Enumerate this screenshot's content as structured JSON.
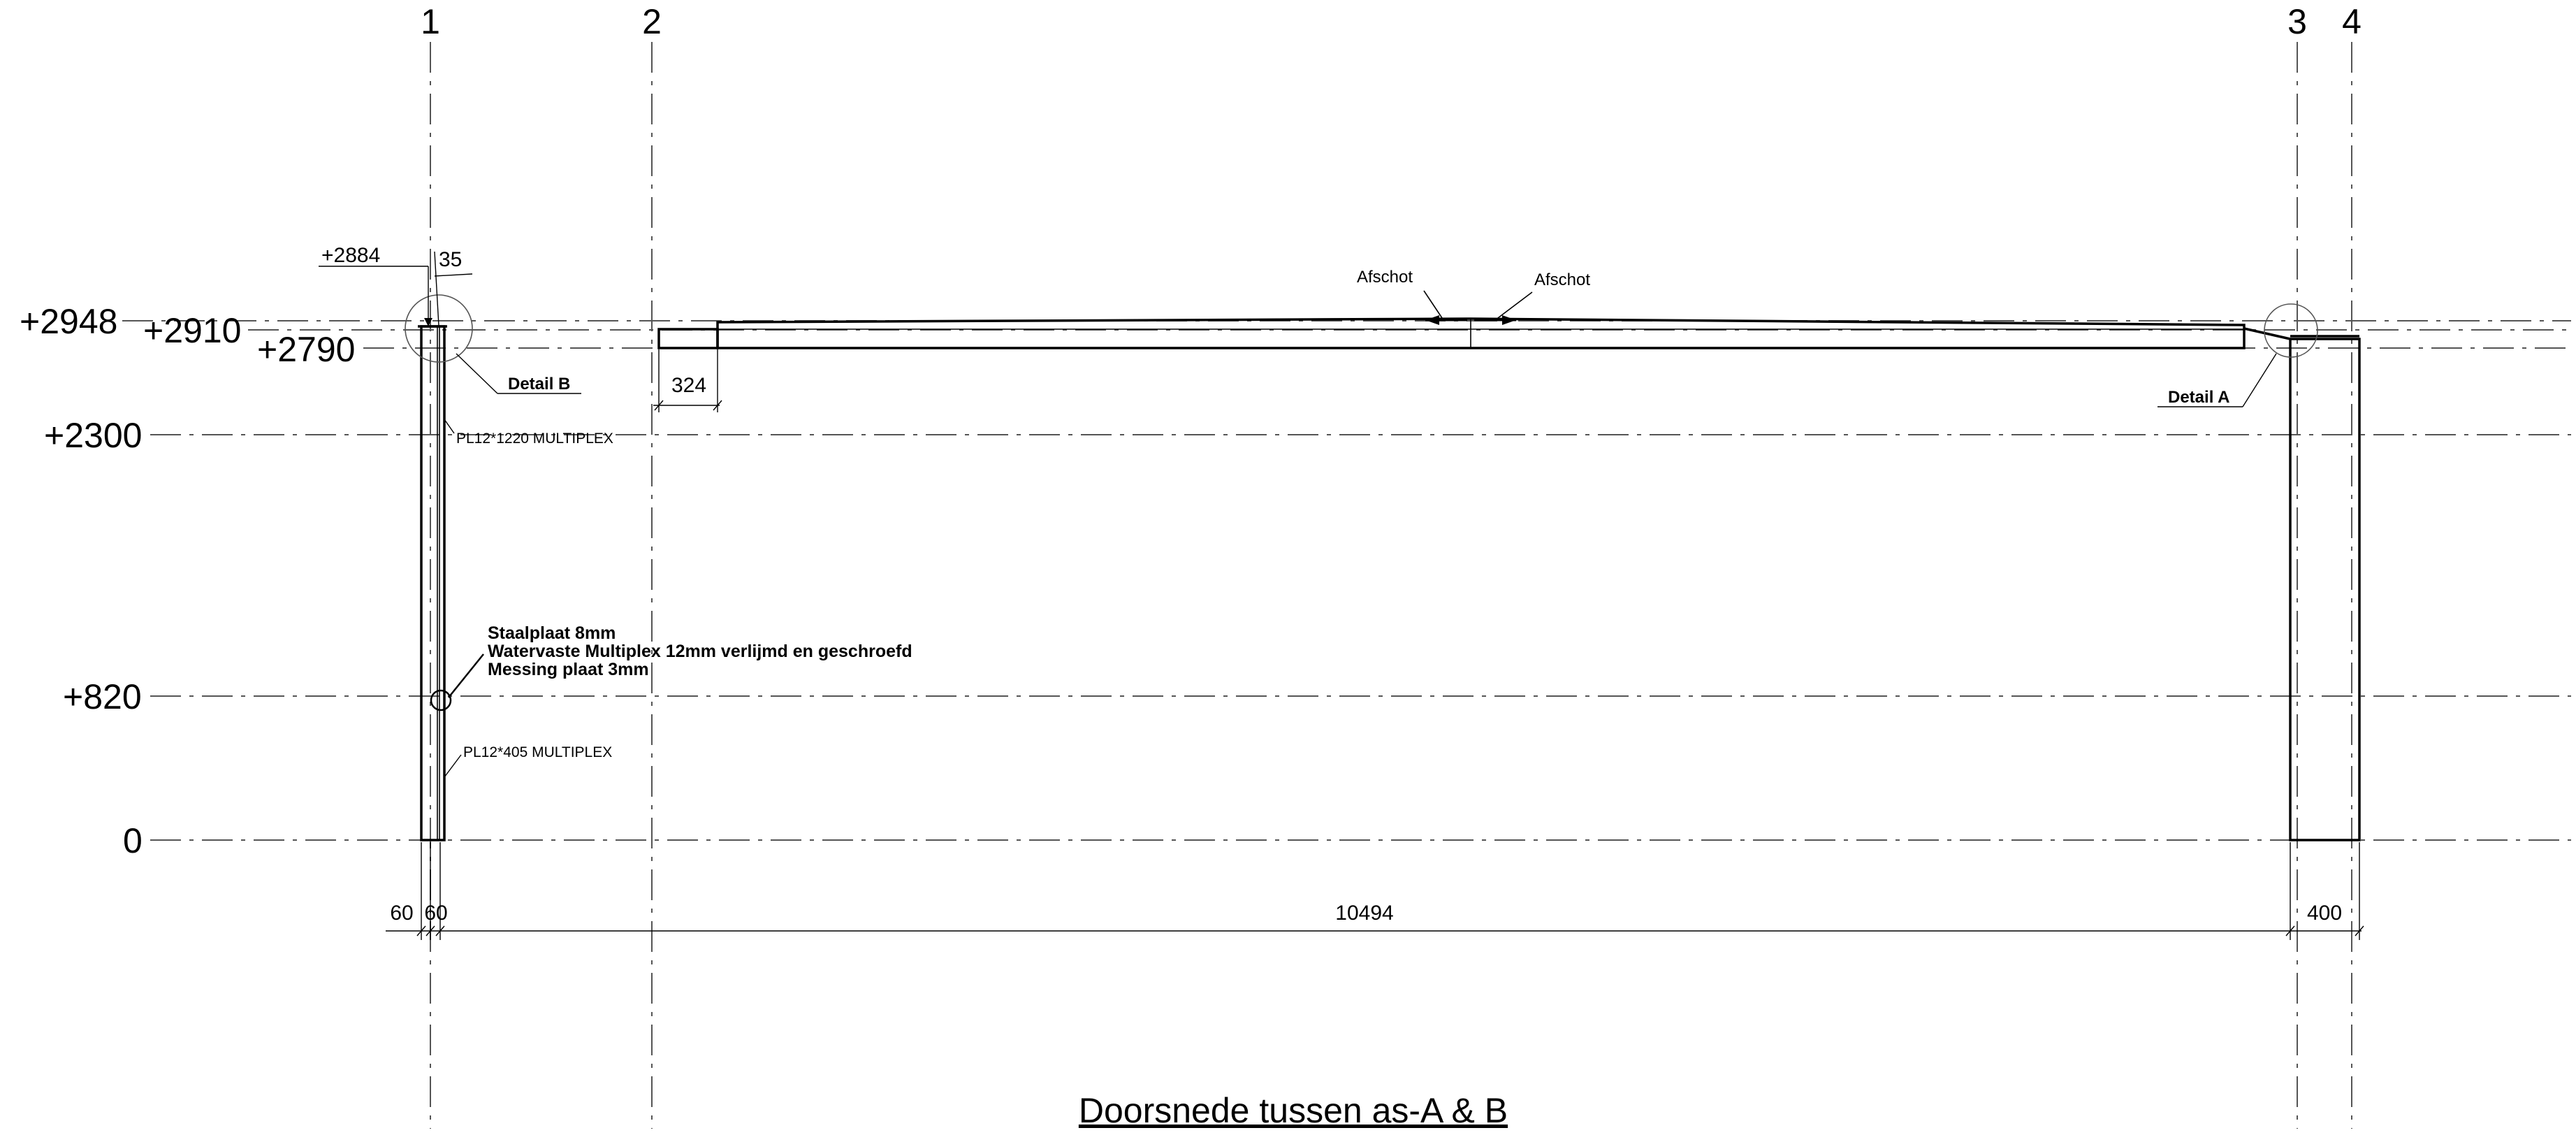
{
  "axes": [
    "1",
    "2",
    "3",
    "4"
  ],
  "levels": [
    "+2948",
    "+2910",
    "+2790",
    "+2300",
    "+820",
    "0"
  ],
  "top_dims": {
    "left_level": "+2884",
    "gap": "35"
  },
  "overhang_dim": "324",
  "bottom_dims": [
    "60",
    "60",
    "10494",
    "400"
  ],
  "slope_labels": [
    "Afschot",
    "Afschot"
  ],
  "details": {
    "a": "Detail A",
    "b": "Detail B"
  },
  "plates": {
    "upper": "PL12*1220 MULTIPLEX",
    "lower": "PL12*405 MULTIPLEX"
  },
  "notes": [
    "Staalplaat 8mm",
    "Watervaste Multiplex 12mm verlijmd en geschroefd",
    "Messing plaat 3mm"
  ],
  "title": "Doorsnede tussen as-A & B"
}
